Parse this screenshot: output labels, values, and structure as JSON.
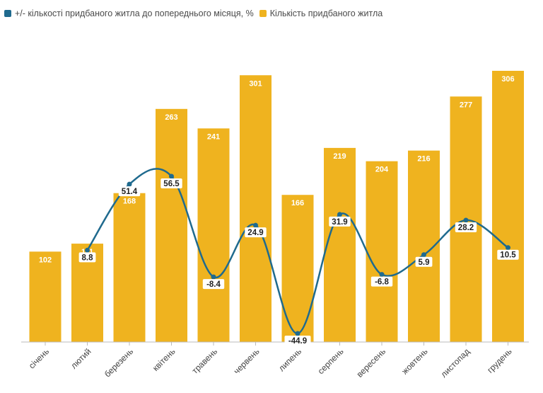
{
  "legend": {
    "line_label": "+/- кількості придбаного житла до попереднього місяця, %",
    "bar_label": "Кількість придбаного житла"
  },
  "colors": {
    "bar": "#EFB31F",
    "line": "#1F6A8E",
    "axis": "#bbbbbb",
    "tick_text": "#444444"
  },
  "chart_data": {
    "type": "bar",
    "categories": [
      "січень",
      "лютий",
      "березень",
      "квітень",
      "травень",
      "червень",
      "липень",
      "серпень",
      "вересень",
      "жовтень",
      "листопад",
      "грудень"
    ],
    "series": [
      {
        "name": "Кількість придбаного житла",
        "type": "bar",
        "values": [
          102,
          111,
          168,
          263,
          241,
          301,
          166,
          219,
          204,
          216,
          277,
          306
        ]
      },
      {
        "name": "+/- кількості придбаного житла до попереднього місяця, %",
        "type": "line",
        "values": [
          null,
          8.8,
          51.4,
          56.5,
          -8.4,
          24.9,
          -44.9,
          31.9,
          -6.8,
          5.9,
          28.2,
          10.5
        ]
      }
    ],
    "bar_axis_range": [
      0,
      306
    ],
    "line_axis_range": [
      -50,
      100
    ],
    "grid": false,
    "legend_position": "top-left"
  }
}
